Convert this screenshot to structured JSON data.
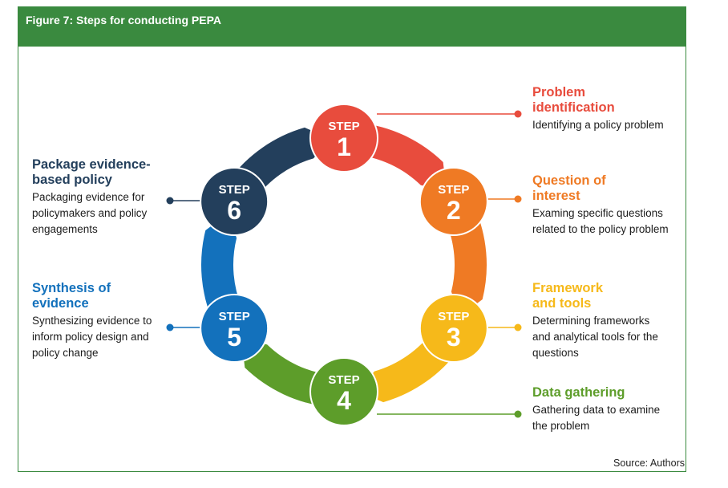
{
  "header": {
    "title": "Figure 7: Steps for conducting PEPA"
  },
  "colors": {
    "green": "#3a8a3f",
    "step1": "#e84c3d",
    "step2": "#ef7a24",
    "step3": "#f6b91a",
    "step4": "#5d9d2a",
    "step5": "#1371bc",
    "step6": "#233f5c"
  },
  "steps": [
    {
      "label": "STEP",
      "number": "1",
      "title": "Problem identification",
      "description": "Identifying a policy problem"
    },
    {
      "label": "STEP",
      "number": "2",
      "title": "Question of interest",
      "description": "Examing specific questions related to the policy problem"
    },
    {
      "label": "STEP",
      "number": "3",
      "title": "Framework and tools",
      "description": "Determining frameworks and analytical tools for the questions"
    },
    {
      "label": "STEP",
      "number": "4",
      "title": "Data gathering",
      "description": "Gathering data to examine the problem"
    },
    {
      "label": "STEP",
      "number": "5",
      "title": "Synthesis of evidence",
      "description": "Synthesizing evidence to inform policy design and policy change"
    },
    {
      "label": "STEP",
      "number": "6",
      "title": "Package evidence-based policy",
      "description": "Packaging evidence for policymakers and policy engagements"
    }
  ],
  "source": "Source: Authors"
}
